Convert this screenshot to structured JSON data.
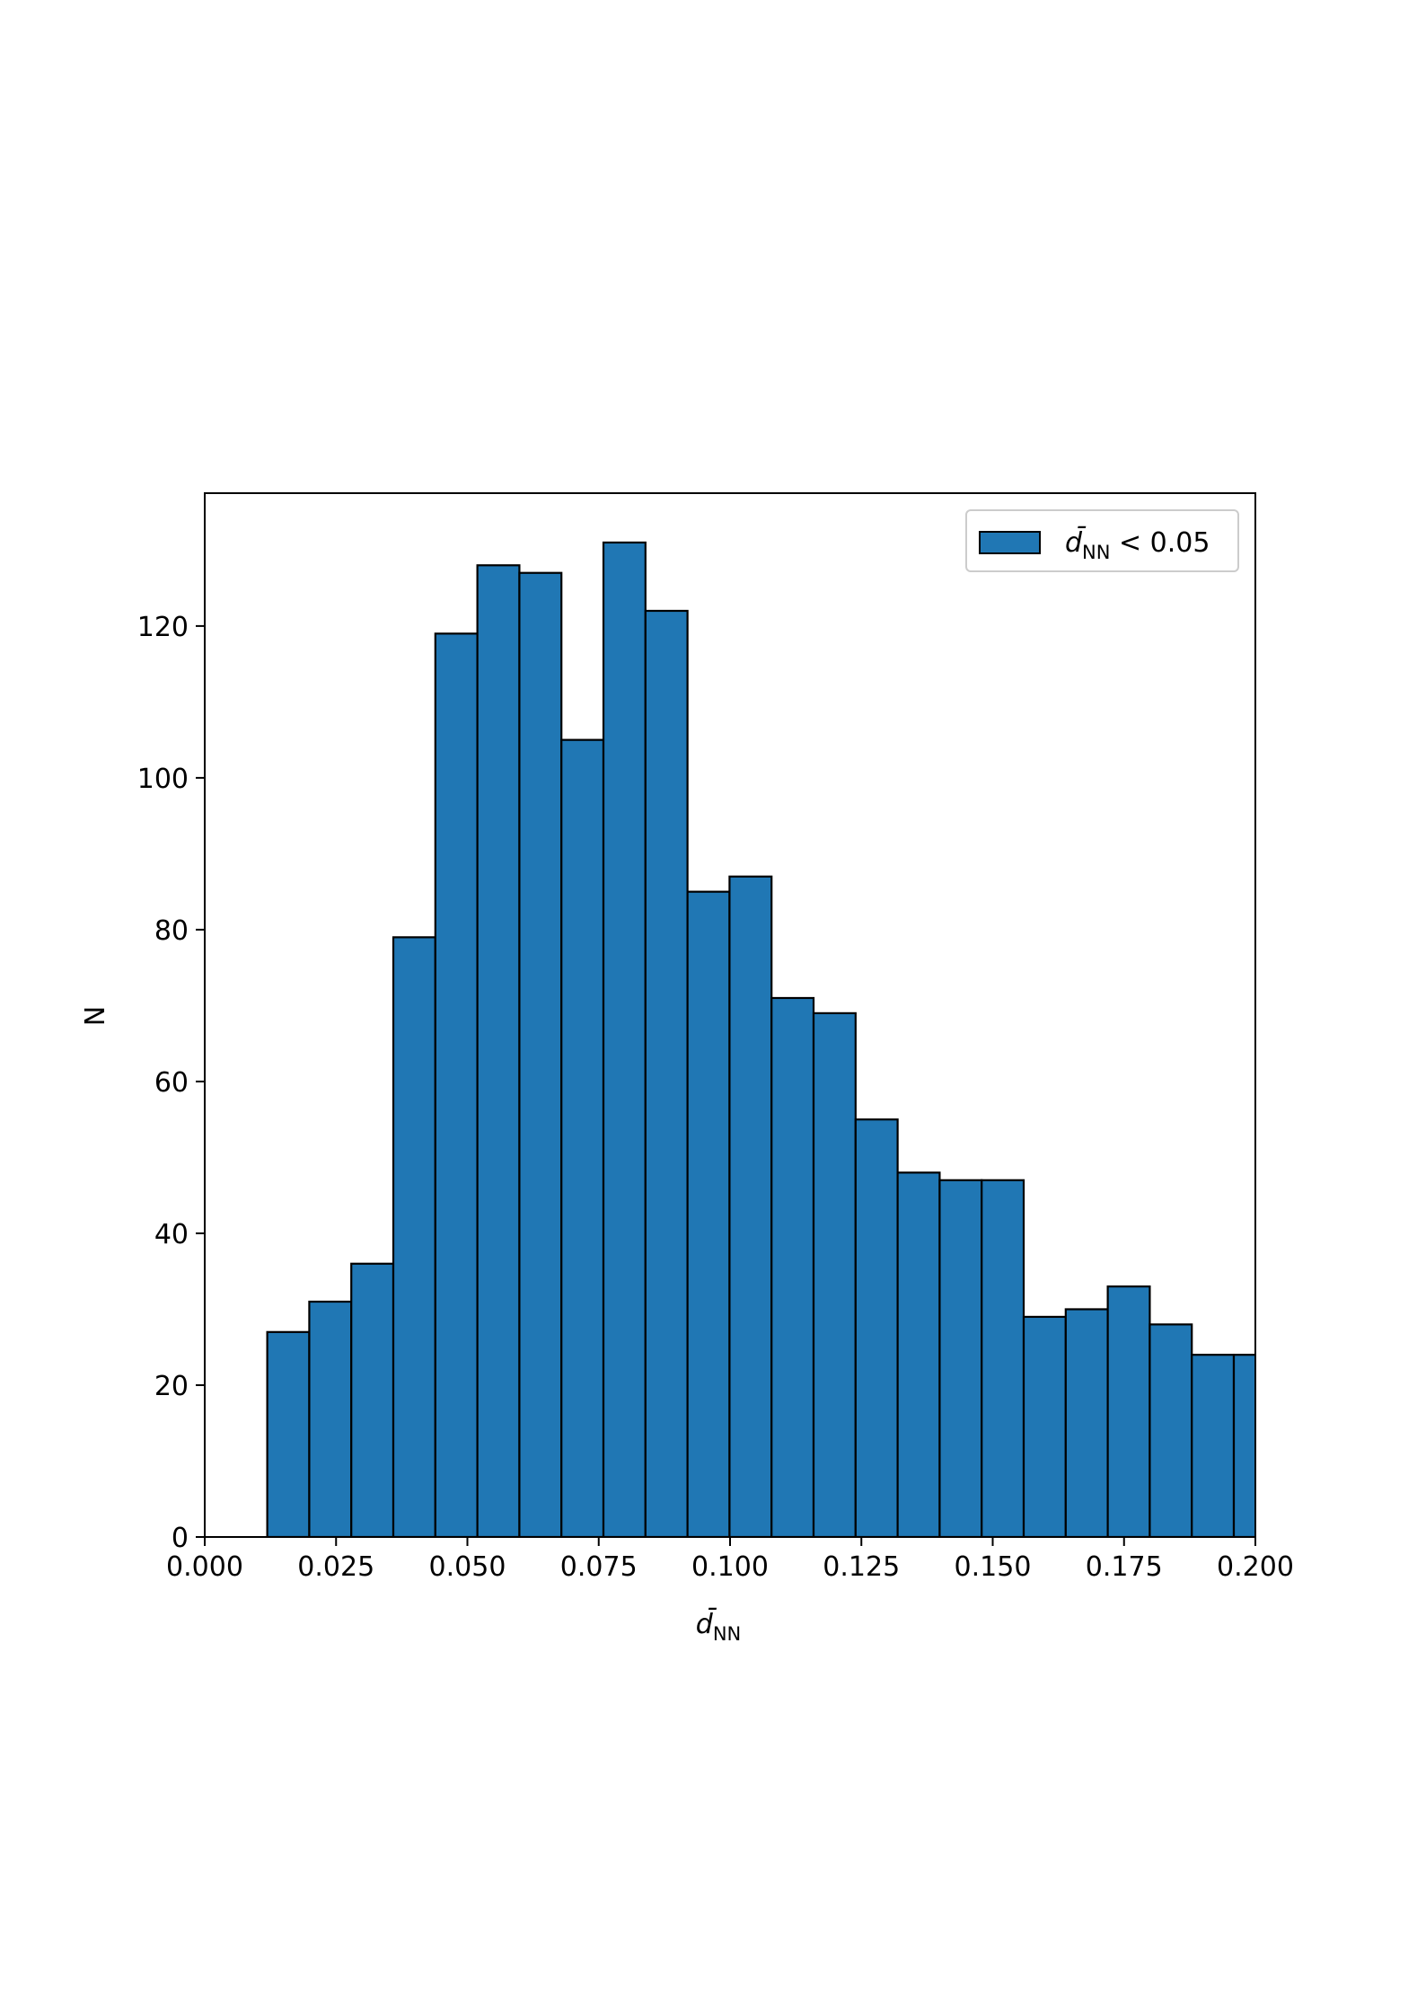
{
  "chart_data": {
    "type": "bar",
    "subtype": "histogram",
    "bin_edges": [
      0.0119,
      0.0199,
      0.0279,
      0.0359,
      0.0439,
      0.0519,
      0.0599,
      0.0679,
      0.0759,
      0.0839,
      0.0919,
      0.0999,
      0.1079,
      0.1159,
      0.1239,
      0.1319,
      0.1399,
      0.1479,
      0.1559,
      0.1639,
      0.1719,
      0.1799,
      0.1879,
      0.1959,
      0.2039
    ],
    "values": [
      27,
      31,
      36,
      79,
      119,
      128,
      127,
      105,
      131,
      122,
      85,
      87,
      71,
      69,
      55,
      48,
      47,
      47,
      29,
      30,
      33,
      28,
      24,
      24
    ],
    "xlabel_main": "d̄",
    "xlabel_sub": "NN",
    "ylabel": "N",
    "xlim": [
      0.0,
      0.2
    ],
    "ylim": [
      0,
      137.5
    ],
    "xticks": [
      "0.000",
      "0.025",
      "0.050",
      "0.075",
      "0.100",
      "0.125",
      "0.150",
      "0.175",
      "0.200"
    ],
    "xtick_values": [
      0.0,
      0.025,
      0.05,
      0.075,
      0.1,
      0.125,
      0.15,
      0.175,
      0.2
    ],
    "yticks": [
      "0",
      "20",
      "40",
      "60",
      "80",
      "100",
      "120"
    ],
    "ytick_values": [
      0,
      20,
      40,
      60,
      80,
      100,
      120
    ],
    "grid": false,
    "legend_position": "top-right",
    "legend": {
      "main": "d̄",
      "sub": "NN",
      "relation": " < 0.05"
    },
    "colors": {
      "bar_fill": "#2077b4",
      "bar_edge": "#000000"
    }
  }
}
